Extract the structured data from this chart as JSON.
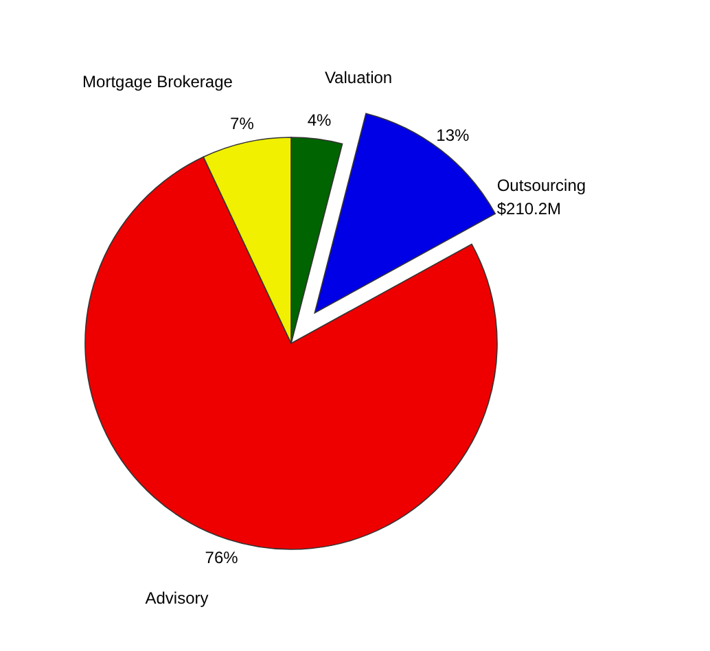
{
  "chart_data": {
    "type": "pie",
    "categories": [
      "Valuation",
      "Outsourcing",
      "Advisory",
      "Mortgage Brokerage"
    ],
    "values": [
      4,
      13,
      76,
      7
    ],
    "colors": [
      "#006400",
      "#0000e6",
      "#ee0000",
      "#f0f000"
    ],
    "value_labels": [
      "4%",
      "13%",
      "76%",
      "7%"
    ],
    "annotations": [
      "$210.2M"
    ]
  }
}
